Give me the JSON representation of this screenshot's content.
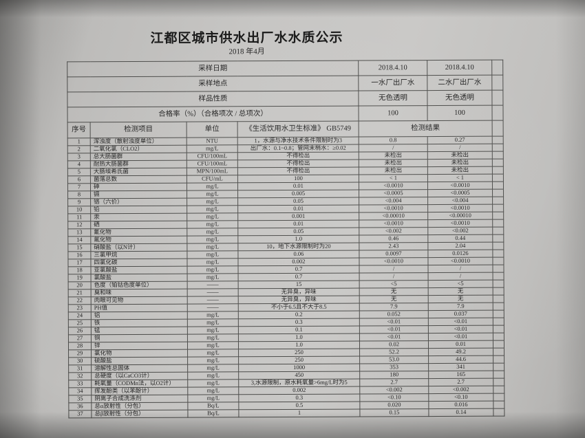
{
  "page": {
    "title": "江都区城市供水出厂水水质公示",
    "period": "2018 年4月"
  },
  "info_rows": [
    {
      "label": "采样日期",
      "plant1": "2018.4.10",
      "plant2": "2018.4.10"
    },
    {
      "label": "采样地点",
      "plant1": "一水厂出厂水",
      "plant2": "二水厂出厂水"
    },
    {
      "label": "样品性质",
      "plant1": "无色透明",
      "plant2": "无色透明"
    },
    {
      "label": "合格率（%）（合格项次 / 总项次）",
      "plant1": "100",
      "plant2": "100"
    }
  ],
  "table": {
    "headers": {
      "index": "序号",
      "item": "检测项目",
      "unit": "单位",
      "standard": "《生活饮用水卫生标准》  GB5749",
      "result": "检测结果"
    },
    "rows": [
      [
        "1",
        "浑浊度（散射浊度单位）",
        "NTU",
        "1，水源与净水技术条件限制时为3",
        "0.8",
        "0.27"
      ],
      [
        "2",
        "二氧化氯（CLO2）",
        "mg/L",
        "出厂水：0.1~0.8；管网末梢水：≥0.02",
        "/",
        "/"
      ],
      [
        "3",
        "总大肠菌群",
        "CFU/100mL",
        "不得检出",
        "未检出",
        "未检出"
      ],
      [
        "4",
        "耐热大肠菌群",
        "CFU/100mL",
        "不得检出",
        "未检出",
        "未检出"
      ],
      [
        "5",
        "大肠埃希氏菌",
        "MPN/100mL",
        "不得检出",
        "未检出",
        "未检出"
      ],
      [
        "6",
        "菌落总数",
        "CFU/mL",
        "100",
        "< 1",
        "< 1"
      ],
      [
        "7",
        "砷",
        "mg/L",
        "0.01",
        "<0.0010",
        "<0.0010"
      ],
      [
        "8",
        "镉",
        "mg/L",
        "0.005",
        "<0.0005",
        "<0.0005"
      ],
      [
        "9",
        "铬（六价）",
        "mg/L",
        "0.05",
        "<0.004",
        "<0.004"
      ],
      [
        "10",
        "铅",
        "mg/L",
        "0.01",
        "<0.0010",
        "<0.0010"
      ],
      [
        "11",
        "汞",
        "mg/L",
        "0.001",
        "<0.00010",
        "<0.00010"
      ],
      [
        "12",
        "硒",
        "mg/L",
        "0.01",
        "<0.0010",
        "<0.0010"
      ],
      [
        "13",
        "氰化物",
        "mg/L",
        "0.05",
        "<0.002",
        "<0.002"
      ],
      [
        "14",
        "氟化物",
        "mg/L",
        "1.0",
        "0.46",
        "0.44"
      ],
      [
        "15",
        "硝酸盐（以N计）",
        "mg/L",
        "10，地下水源限制时为20",
        "2.43",
        "2.04"
      ],
      [
        "16",
        "三氯甲烷",
        "mg/L",
        "0.06",
        "0.0097",
        "0.0126"
      ],
      [
        "17",
        "四氯化碳",
        "mg/L",
        "0.002",
        "<0.0010",
        "<0.0010"
      ],
      [
        "18",
        "亚氯酸盐",
        "mg/L",
        "0.7",
        "/",
        "/"
      ],
      [
        "19",
        "氯酸盐",
        "mg/L",
        "0.7",
        "/",
        "/"
      ],
      [
        "20",
        "色度（铂钴色度单位）",
        "——",
        "15",
        "<5",
        "<5"
      ],
      [
        "21",
        "臭和味",
        "——",
        "无异臭，异味",
        "无",
        "无"
      ],
      [
        "22",
        "肉眼可见物",
        "——",
        "无异臭，异味",
        "无",
        "无"
      ],
      [
        "23",
        "PH值",
        "——",
        "不小于6.5且不大于8.5",
        "7.9",
        "7.9"
      ],
      [
        "24",
        "铝",
        "mg/L",
        "0.2",
        "0.052",
        "0.037"
      ],
      [
        "25",
        "铁",
        "mg/L",
        "0.3",
        "<0.01",
        "<0.01"
      ],
      [
        "26",
        "锰",
        "mg/L",
        "0.1",
        "<0.01",
        "<0.01"
      ],
      [
        "27",
        "铜",
        "mg/L",
        "1.0",
        "<0.01",
        "<0.01"
      ],
      [
        "28",
        "锌",
        "mg/L",
        "1.0",
        "0.02",
        "0.01"
      ],
      [
        "29",
        "氯化物",
        "mg/L",
        "250",
        "52.2",
        "49.2"
      ],
      [
        "30",
        "硫酸盐",
        "mg/L",
        "250",
        "53.0",
        "44.6"
      ],
      [
        "31",
        "溶解性总固体",
        "mg/L",
        "1000",
        "353",
        "341"
      ],
      [
        "32",
        "总硬度（以CaCO3计）",
        "mg/L",
        "450",
        "180",
        "165"
      ],
      [
        "33",
        "耗氧量（CODMn法，以O2计）",
        "mg/L",
        "3,水源限制，原水耗氧量>6mg/L时为5",
        "2.7",
        "2.7"
      ],
      [
        "34",
        "挥发酚类（以苯酚计）",
        "mg/L",
        "0.002",
        "<0.002",
        "<0.002"
      ],
      [
        "35",
        "阴离子合成洗涤剂",
        "mg/L",
        "0.3",
        "<0.10",
        "<0.10"
      ],
      [
        "36",
        "总α放射性（分包）",
        "Bq/L",
        "0.5",
        "0.020",
        "0.016"
      ],
      [
        "37",
        "总β放射性（分包）",
        "Bq/L",
        "1",
        "0.15",
        "0.14"
      ]
    ]
  },
  "colors": {
    "background": "#8f8e8c",
    "paper": "#c9c8c6",
    "ink": "#1d1d1d",
    "line": "#4a4a48"
  }
}
